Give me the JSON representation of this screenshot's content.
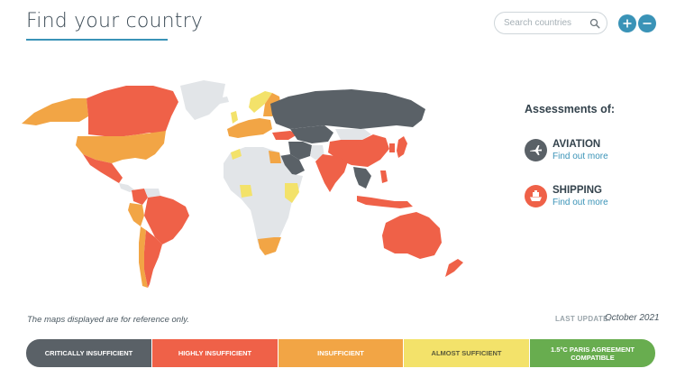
{
  "header": {
    "title": "Find your country",
    "search_placeholder": "Search countries"
  },
  "zoom": {
    "in_label": "+",
    "out_label": "–"
  },
  "colors": {
    "accent": "#3a93b7",
    "critically_insufficient": "#5a6167",
    "highly_insufficient": "#ef6148",
    "insufficient": "#f2a545",
    "almost_sufficient": "#f3e26a",
    "paris_compatible": "#68ad4f",
    "no_data": "#e2e5e8"
  },
  "assessments": {
    "title": "Assessments of:",
    "items": [
      {
        "label": "AVIATION",
        "link": "Find out more",
        "icon": "airplane-icon",
        "color": "#5a6167"
      },
      {
        "label": "SHIPPING",
        "link": "Find out more",
        "icon": "ship-icon",
        "color": "#ef6148"
      }
    ]
  },
  "footer": {
    "disclaimer": "The maps displayed are for reference only.",
    "last_update_label": "LAST UPDATE:",
    "last_update_value": "October 2021"
  },
  "legend": [
    {
      "label": "CRITICALLY INSUFFICIENT"
    },
    {
      "label": "HIGHLY INSUFFICIENT"
    },
    {
      "label": "INSUFFICIENT"
    },
    {
      "label": "ALMOST SUFFICIENT"
    },
    {
      "label": "1.5°C PARIS AGREEMENT COMPATIBLE"
    }
  ]
}
